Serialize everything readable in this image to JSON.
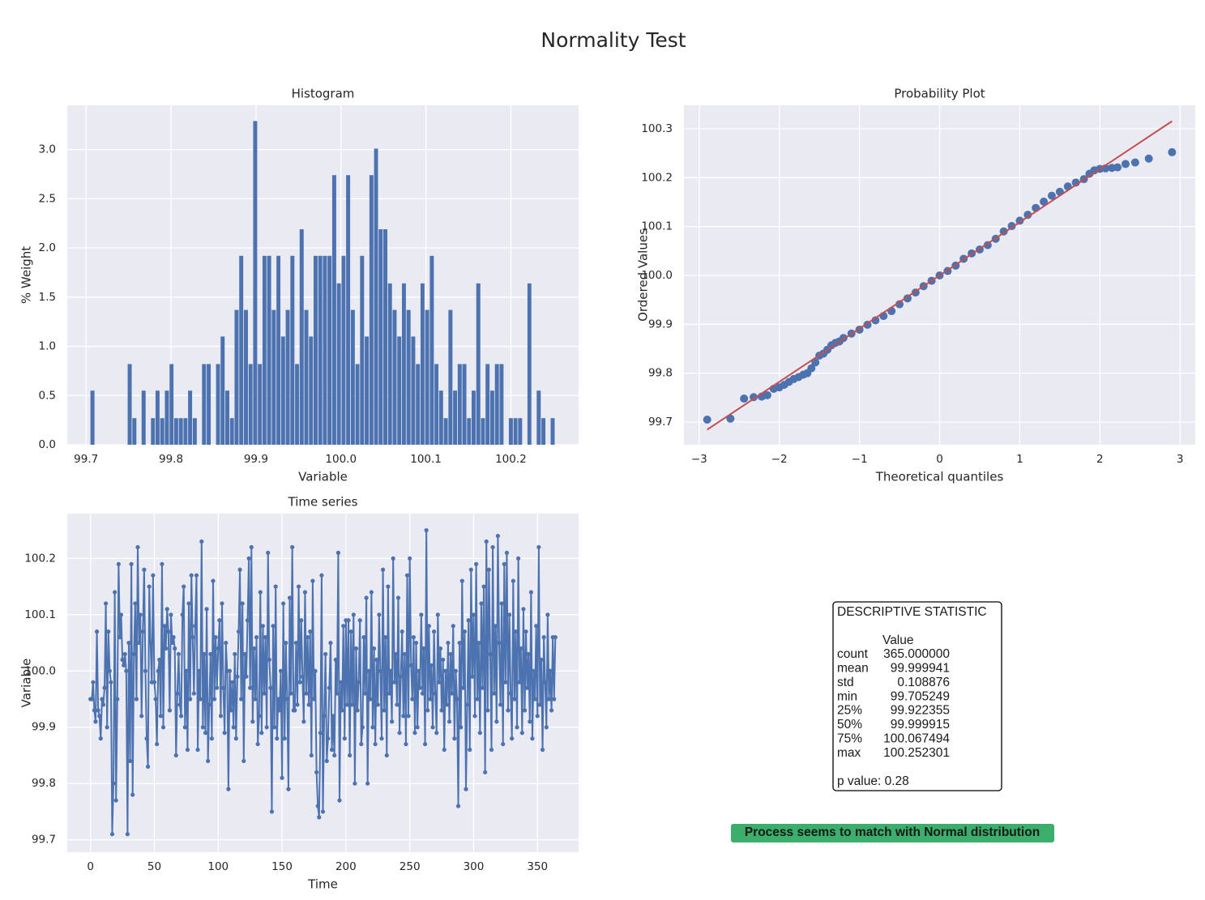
{
  "title": "Normality Test",
  "chart_data": [
    {
      "type": "histogram",
      "title": "Histogram",
      "x_label": "Variable",
      "y_label": "% Weight",
      "color": "#4c72b0",
      "grid": true,
      "bins": [
        99.7052,
        99.7107,
        99.7162,
        99.7217,
        99.7271,
        99.7326,
        99.7381,
        99.7435,
        99.749,
        99.7545,
        99.76,
        99.7654,
        99.7709,
        99.7764,
        99.7818,
        99.7873,
        99.7928,
        99.7983,
        99.8037,
        99.8092,
        99.8147,
        99.8201,
        99.8256,
        99.8311,
        99.8365,
        99.842,
        99.8475,
        99.853,
        99.8584,
        99.8639,
        99.8694,
        99.8748,
        99.8803,
        99.8858,
        99.8913,
        99.8967,
        99.9022,
        99.9077,
        99.9131,
        99.9186,
        99.9241,
        99.9295,
        99.935,
        99.9405,
        99.946,
        99.9514,
        99.9569,
        99.9624,
        99.9678,
        99.9733,
        99.9788,
        99.9842,
        99.9897,
        99.9952,
        100.0007,
        100.0061,
        100.0116,
        100.0171,
        100.0225,
        100.028,
        100.0335,
        100.039,
        100.0444,
        100.0499,
        100.0554,
        100.0608,
        100.0663,
        100.0718,
        100.0772,
        100.0827,
        100.0882,
        100.0937,
        100.0991,
        100.1046,
        100.1101,
        100.1155,
        100.121,
        100.1265,
        100.132,
        100.1374,
        100.1429,
        100.1484,
        100.1538,
        100.1593,
        100.1648,
        100.1702,
        100.1757,
        100.1812,
        100.1867,
        100.1921,
        100.1976,
        100.2031,
        100.2085,
        100.214,
        100.2195,
        100.2249,
        100.2304,
        100.2359,
        100.2414,
        100.2468,
        100.2523
      ],
      "values": [
        0.55,
        0,
        0,
        0,
        0,
        0,
        0,
        0,
        0.82,
        0.27,
        0,
        0.55,
        0,
        0.27,
        0.55,
        0.27,
        0.55,
        0.82,
        0.27,
        0.27,
        0.27,
        0.55,
        0.27,
        0,
        0.82,
        0.82,
        0,
        0.82,
        1.1,
        0.55,
        0.27,
        1.37,
        1.92,
        1.37,
        0.82,
        3.29,
        0.82,
        1.92,
        1.92,
        1.37,
        1.92,
        1.1,
        1.37,
        1.92,
        0.82,
        2.19,
        1.37,
        1.1,
        1.92,
        1.92,
        1.92,
        1.92,
        2.74,
        1.64,
        1.92,
        2.74,
        1.37,
        0.82,
        1.92,
        1.1,
        2.74,
        3.01,
        2.19,
        2.19,
        1.64,
        1.37,
        1.1,
        1.64,
        1.37,
        1.1,
        0.82,
        1.64,
        1.37,
        1.92,
        0.82,
        0.55,
        0.27,
        1.37,
        0.55,
        0.82,
        0.82,
        0.27,
        0.55,
        1.64,
        0.27,
        0.82,
        0.55,
        0.82,
        0.82,
        0,
        0.27,
        0.27,
        0.27,
        0,
        1.64,
        0,
        0.55,
        0.27,
        0,
        0.27
      ],
      "xlim": [
        99.6779,
        100.2797
      ],
      "xticks": [
        99.7,
        99.8,
        99.9,
        {
          "value": 100,
          "label": "100.0"
        },
        100.1,
        100.2
      ],
      "ylim": [
        0,
        3.45
      ],
      "yticks": [
        {
          "value": 0,
          "label": "0.0"
        },
        0.5,
        {
          "value": 1,
          "label": "1.0"
        },
        1.5,
        {
          "value": 2,
          "label": "2.0"
        },
        2.5,
        {
          "value": 3,
          "label": "3.0"
        }
      ]
    },
    {
      "type": "scatter",
      "title": "Probability Plot",
      "x_label": "Theoretical quantiles",
      "y_label": "Ordered Values",
      "color": "#4c72b0",
      "grid": true,
      "x": [
        -2.9,
        -2.61,
        -2.44,
        -2.32,
        -2.22,
        -2.15,
        -2.07,
        -2.0,
        -1.94,
        -1.88,
        -1.82,
        -1.76,
        -1.7,
        -1.65,
        -1.6,
        -1.55,
        -1.5,
        -1.45,
        -1.4,
        -1.35,
        -1.3,
        -1.25,
        -1.2,
        -1.1,
        -1.0,
        -0.9,
        -0.8,
        -0.7,
        -0.6,
        -0.5,
        -0.4,
        -0.3,
        -0.2,
        -0.1,
        0,
        0.1,
        0.2,
        0.3,
        0.4,
        0.5,
        0.6,
        0.7,
        0.8,
        0.9,
        1.0,
        1.1,
        1.2,
        1.3,
        1.4,
        1.5,
        1.6,
        1.7,
        1.8,
        1.87,
        1.93,
        2.0,
        2.07,
        2.15,
        2.22,
        2.32,
        2.44,
        2.61,
        2.9
      ],
      "values": [
        99.705,
        99.707,
        99.748,
        99.751,
        99.752,
        99.755,
        99.768,
        99.771,
        99.776,
        99.782,
        99.788,
        99.792,
        99.797,
        99.8,
        99.81,
        99.822,
        99.836,
        99.84,
        99.848,
        99.857,
        99.862,
        99.865,
        99.872,
        99.881,
        99.889,
        99.899,
        99.908,
        99.917,
        99.927,
        99.941,
        99.953,
        99.965,
        99.978,
        99.989,
        100.0,
        100.009,
        100.02,
        100.034,
        100.045,
        100.053,
        100.062,
        100.075,
        100.09,
        100.101,
        100.112,
        100.124,
        100.138,
        100.151,
        100.163,
        100.171,
        100.182,
        100.19,
        100.197,
        100.208,
        100.215,
        100.218,
        100.219,
        100.22,
        100.221,
        100.228,
        100.231,
        100.239,
        100.252
      ],
      "fit": {
        "x": [
          -2.9,
          2.9
        ],
        "values": [
          99.6845,
          100.3155
        ],
        "color": "#c44e52"
      },
      "xlim": [
        -3.19,
        3.19
      ],
      "xticks": [
        {
          "value": -3,
          "label": "−3"
        },
        {
          "value": -2,
          "label": "−2"
        },
        {
          "value": -1,
          "label": "−1"
        },
        0,
        1,
        2,
        3
      ],
      "ylim": [
        99.6536,
        100.348
      ],
      "yticks": [
        99.7,
        99.8,
        99.9,
        {
          "value": 100,
          "label": "100.0"
        },
        100.1,
        100.2,
        100.3
      ]
    },
    {
      "type": "line",
      "title": "Time series",
      "x_label": "Time",
      "y_label": "Variable",
      "color": "#4c72b0",
      "grid": true,
      "markers": true,
      "x": [
        0,
        1,
        2,
        3,
        4,
        5,
        6,
        7,
        8,
        9,
        10,
        11,
        12,
        13,
        14,
        15,
        16,
        17,
        18,
        19,
        20,
        21,
        22,
        23,
        24,
        25,
        26,
        27,
        28,
        29,
        30,
        31,
        32,
        33,
        34,
        35,
        36,
        37,
        38,
        39,
        40,
        41,
        42,
        43,
        44,
        45,
        46,
        47,
        48,
        49,
        50,
        51,
        52,
        53,
        54,
        55,
        56,
        57,
        58,
        59,
        60,
        61,
        62,
        63,
        64,
        65,
        66,
        67,
        68,
        69,
        70,
        71,
        72,
        73,
        74,
        75,
        76,
        77,
        78,
        79,
        80,
        81,
        82,
        83,
        84,
        85,
        86,
        87,
        88,
        89,
        90,
        91,
        92,
        93,
        94,
        95,
        96,
        97,
        98,
        99,
        100,
        101,
        102,
        103,
        104,
        105,
        106,
        107,
        108,
        109,
        110,
        111,
        112,
        113,
        114,
        115,
        116,
        117,
        118,
        119,
        120,
        121,
        122,
        123,
        124,
        125,
        126,
        127,
        128,
        129,
        130,
        131,
        132,
        133,
        134,
        135,
        136,
        137,
        138,
        139,
        140,
        141,
        142,
        143,
        144,
        145,
        146,
        147,
        148,
        149,
        150,
        151,
        152,
        153,
        154,
        155,
        156,
        157,
        158,
        159,
        160,
        161,
        162,
        163,
        164,
        165,
        166,
        167,
        168,
        169,
        170,
        171,
        172,
        173,
        174,
        175,
        176,
        177,
        178,
        179,
        180,
        181,
        182,
        183,
        184,
        185,
        186,
        187,
        188,
        189,
        190,
        191,
        192,
        193,
        194,
        195,
        196,
        197,
        198,
        199,
        200,
        201,
        202,
        203,
        204,
        205,
        206,
        207,
        208,
        209,
        210,
        211,
        212,
        213,
        214,
        215,
        216,
        217,
        218,
        219,
        220,
        221,
        222,
        223,
        224,
        225,
        226,
        227,
        228,
        229,
        230,
        231,
        232,
        233,
        234,
        235,
        236,
        237,
        238,
        239,
        240,
        241,
        242,
        243,
        244,
        245,
        246,
        247,
        248,
        249,
        250,
        251,
        252,
        253,
        254,
        255,
        256,
        257,
        258,
        259,
        260,
        261,
        262,
        263,
        264,
        265,
        266,
        267,
        268,
        269,
        270,
        271,
        272,
        273,
        274,
        275,
        276,
        277,
        278,
        279,
        280,
        281,
        282,
        283,
        284,
        285,
        286,
        287,
        288,
        289,
        290,
        291,
        292,
        293,
        294,
        295,
        296,
        297,
        298,
        299,
        300,
        301,
        302,
        303,
        304,
        305,
        306,
        307,
        308,
        309,
        310,
        311,
        312,
        313,
        314,
        315,
        316,
        317,
        318,
        319,
        320,
        321,
        322,
        323,
        324,
        325,
        326,
        327,
        328,
        329,
        330,
        331,
        332,
        333,
        334,
        335,
        336,
        337,
        338,
        339,
        340,
        341,
        342,
        343,
        344,
        345,
        346,
        347,
        348,
        349,
        350,
        351,
        352,
        353,
        354,
        355,
        356,
        357,
        358,
        359,
        360,
        361,
        362,
        363,
        364
      ],
      "values": [
        99.95,
        99.95,
        99.98,
        99.93,
        99.91,
        100.07,
        99.93,
        99.92,
        99.88,
        99.95,
        99.94,
        99.97,
        100.12,
        99.9,
        100.07,
        100.0,
        99.98,
        99.71,
        99.8,
        100.14,
        99.77,
        99.95,
        100.19,
        100.06,
        100.1,
        100.02,
        100.01,
        100.03,
        100.0,
        99.71,
        100.05,
        99.84,
        100.19,
        99.78,
        100.03,
        100.12,
        99.95,
        100.22,
        100.05,
        100.1,
        99.92,
        100.07,
        100.18,
        100.0,
        99.88,
        99.83,
        100.15,
        100.05,
        99.98,
        100.17,
        99.98,
        99.95,
        99.87,
        100.0,
        100.02,
        99.92,
        100.19,
        99.9,
        100.08,
        100.04,
        100.11,
        100.07,
        99.93,
        100.1,
        100.05,
        100.06,
        100.04,
        99.85,
        99.96,
        100.03,
        99.94,
        99.92,
        100.1,
        100.15,
        99.9,
        100.0,
        99.86,
        100.12,
        99.95,
        100.17,
        100.06,
        99.96,
        100.08,
        100.17,
        99.86,
        100.0,
        99.95,
        100.23,
        99.9,
        100.03,
        99.89,
        100.11,
        99.84,
        99.94,
        100.03,
        99.88,
        100.16,
        99.95,
        100.06,
        99.97,
        100.04,
        100.09,
        99.92,
        100.12,
        99.97,
        99.89,
        100.05,
        100.0,
        99.79,
        100.0,
        99.93,
        99.98,
        99.9,
        100.03,
        99.88,
        99.99,
        100.07,
        100.18,
        99.95,
        100.12,
        99.84,
        100.03,
        99.99,
        100.09,
        100.2,
        99.97,
        100.22,
        99.91,
        100.04,
        99.95,
        100.06,
        99.87,
        99.92,
        100.14,
        99.89,
        100.08,
        99.96,
        100.06,
        99.9,
        100.21,
        100.02,
        99.97,
        99.75,
        100.08,
        99.9,
        100.15,
        99.88,
        99.95,
        99.93,
        100.0,
        99.81,
        100.12,
        99.88,
        100.05,
        99.95,
        99.79,
        100.13,
        99.96,
        100.22,
        99.93,
        99.93,
        100.05,
        99.94,
        100.15,
        99.98,
        100.09,
        99.99,
        99.91,
        100.14,
        99.96,
        100.06,
        99.94,
        100.07,
        99.85,
        100.16,
        99.95,
        100.0,
        99.82,
        99.76,
        99.74,
        99.89,
        100.17,
        99.75,
        99.92,
        100.03,
        99.84,
        99.88,
        99.97,
        100.05,
        99.86,
        99.92,
        99.85,
        100.02,
        99.96,
        100.21,
        99.77,
        99.98,
        99.93,
        100.08,
        99.88,
        100.09,
        99.94,
        100.09,
        99.85,
        100.07,
        99.94,
        100.1,
        99.8,
        100.04,
        99.93,
        99.98,
        100.09,
        99.87,
        99.9,
        100.06,
        99.96,
        100.13,
        99.8,
        100.0,
        99.95,
        100.14,
        99.9,
        100.04,
        99.87,
        100.02,
        99.94,
        100.1,
        100.0,
        99.88,
        100.18,
        99.93,
        100.06,
        99.85,
        100.15,
        99.96,
        100.0,
        99.91,
        100.2,
        99.98,
        100.03,
        99.94,
        100.13,
        99.89,
        99.99,
        100.07,
        99.92,
        100.03,
        99.87,
        100.17,
        99.92,
        100.2,
        100.01,
        99.95,
        100.06,
        99.89,
        100.05,
        99.9,
        100.0,
        99.97,
        100.1,
        99.96,
        100.04,
        99.87,
        100.25,
        99.93,
        100.08,
        99.95,
        100.01,
        99.9,
        100.07,
        99.96,
        99.89,
        100.1,
        99.98,
        100.04,
        99.93,
        100.02,
        99.86,
        100.0,
        99.94,
        100.05,
        99.91,
        100.03,
        99.96,
        100.08,
        99.88,
        100.0,
        99.95,
        99.76,
        100.05,
        99.9,
        100.16,
        99.97,
        100.07,
        99.79,
        99.94,
        100.09,
        99.86,
        100.18,
        99.99,
        100.1,
        99.92,
        100.19,
        99.95,
        100.05,
        99.89,
        100.12,
        99.97,
        100.15,
        99.82,
        100.23,
        99.93,
        100.18,
        100.03,
        99.86,
        100.22,
        99.96,
        100.08,
        99.91,
        100.24,
        100.05,
        99.94,
        100.12,
        99.87,
        100.19,
        99.98,
        100.21,
        99.93,
        100.1,
        99.96,
        99.88,
        100.16,
        99.95,
        100.07,
        99.9,
        100.2,
        99.98,
        100.04,
        99.89,
        100.11,
        99.93,
        100.07,
        99.97,
        100.03,
        99.91,
        100.14,
        99.88,
        100.0,
        99.95,
        100.08,
        99.92,
        100.22,
        99.94,
        100.02,
        99.86,
        100.06,
        99.98,
        99.9,
        100.1,
        99.95,
        100.0,
        99.93,
        100.06,
        99.95,
        100.06
      ],
      "xlim": [
        -18.2,
        382.2
      ],
      "xticks": [
        0,
        50,
        100,
        150,
        200,
        250,
        300,
        350
      ],
      "ylim": [
        99.6779,
        100.2797
      ],
      "yticks": [
        99.7,
        99.8,
        99.9,
        {
          "value": 100,
          "label": "100.0"
        },
        100.1,
        100.2
      ]
    }
  ],
  "stats": {
    "title": "DESCRIPTIVE STATISTIC",
    "column": "Value",
    "rows": [
      [
        "count",
        "365.000000"
      ],
      [
        "mean",
        "99.999941"
      ],
      [
        "std",
        "0.108876"
      ],
      [
        "min",
        "99.705249"
      ],
      [
        "25%",
        "99.922355"
      ],
      [
        "50%",
        "99.999915"
      ],
      [
        "75%",
        "100.067494"
      ],
      [
        "max",
        "100.252301"
      ]
    ],
    "p_value": "p value: 0.28"
  },
  "verdict": "Process seems to match with Normal distribution"
}
